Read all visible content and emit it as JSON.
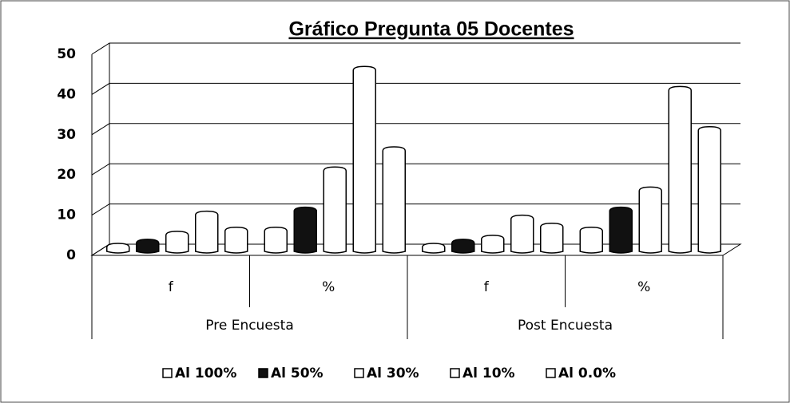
{
  "chart_data": {
    "type": "bar",
    "title": "Gráfico Pregunta 05 Docentes",
    "categories": [
      "f",
      "%",
      "f",
      "%"
    ],
    "groups": [
      "Pre Encuesta",
      "Post Encuesta"
    ],
    "series": [
      {
        "name": "Al 100%",
        "color": "#ffffff",
        "values": [
          1,
          5,
          1,
          5
        ]
      },
      {
        "name": "Al 50%",
        "color": "#111111",
        "values": [
          2,
          10,
          2,
          10
        ]
      },
      {
        "name": "Al 30%",
        "color": "#ffffff",
        "values": [
          4,
          20,
          3,
          15
        ]
      },
      {
        "name": "Al 10%",
        "color": "#ffffff",
        "values": [
          9,
          45,
          8,
          40
        ]
      },
      {
        "name": "Al 0.0%",
        "color": "#ffffff",
        "values": [
          5,
          25,
          6,
          30
        ]
      }
    ],
    "ylim": [
      0,
      50
    ],
    "yticks": [
      0,
      10,
      20,
      30,
      40,
      50
    ],
    "grid": true,
    "legend": "bottom"
  }
}
